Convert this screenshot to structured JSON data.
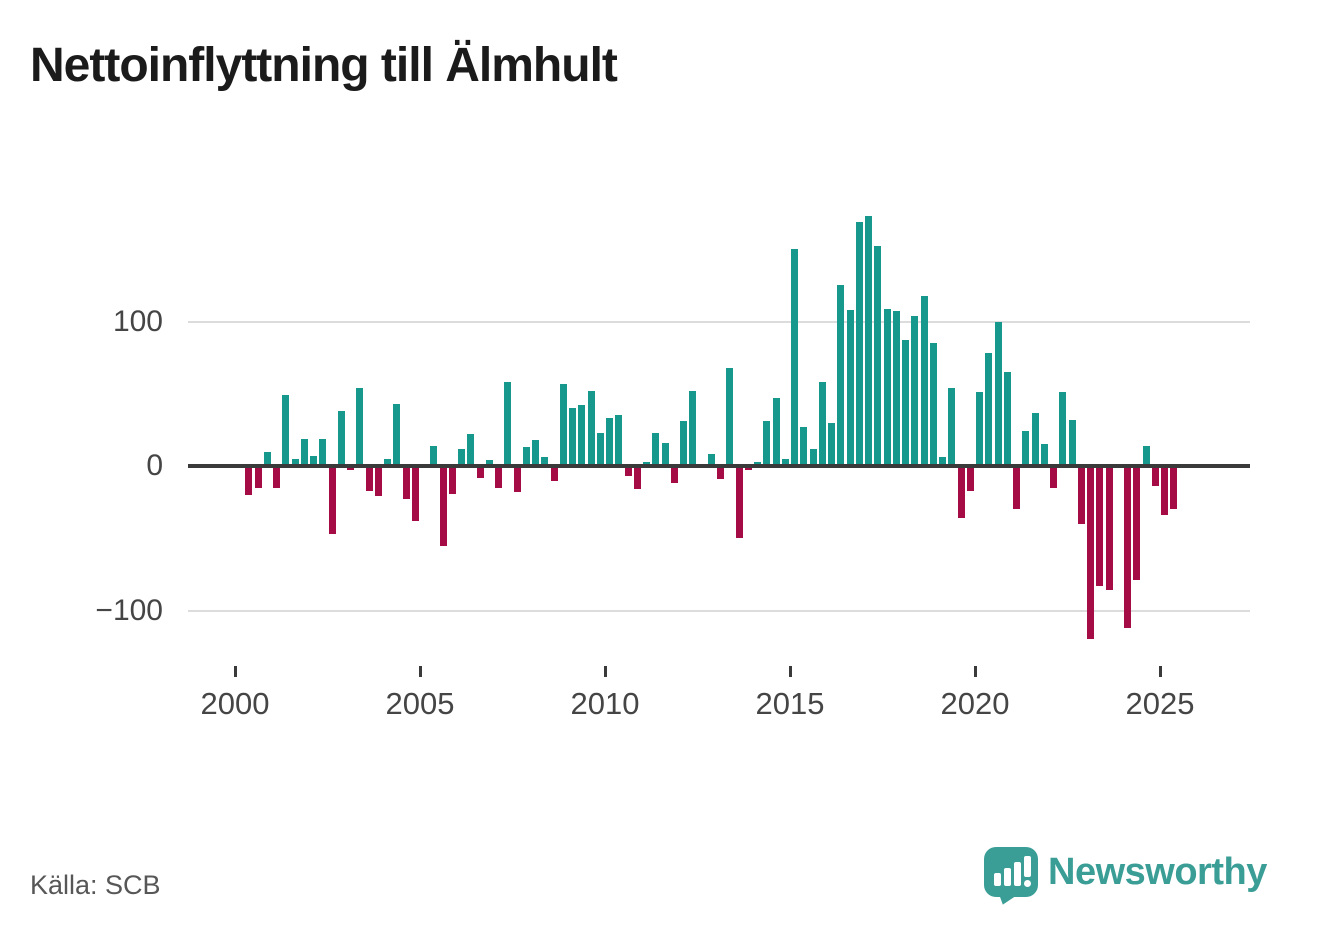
{
  "title": "Nettoinflyttning till Älmhult",
  "source": "Källa: SCB",
  "logo": {
    "text": "Newsworthy"
  },
  "colors": {
    "positive": "#16998c",
    "negative": "#a50c45",
    "logo_teal": "#3a9e96",
    "axis": "#3a3a3a",
    "grid": "#dcdcdc"
  },
  "chart_data": {
    "type": "bar",
    "title": "Nettoinflyttning till Älmhult",
    "period": "quarterly",
    "start_year": 2000,
    "start_quarter": "Q1",
    "end_quarter": "2025-Q2",
    "x_ticks": [
      {
        "label": "2000",
        "year": 2000
      },
      {
        "label": "2005",
        "year": 2005
      },
      {
        "label": "2010",
        "year": 2010
      },
      {
        "label": "2015",
        "year": 2015
      },
      {
        "label": "2020",
        "year": 2020
      },
      {
        "label": "2025",
        "year": 2025
      }
    ],
    "y_ticks": [
      {
        "label": "100",
        "value": 100
      },
      {
        "label": "0",
        "value": 0
      },
      {
        "label": "−100",
        "value": -100
      }
    ],
    "ylim": [
      -130,
      185
    ],
    "grid": "horizontal",
    "legend": "none",
    "values": [
      0,
      -20,
      -15,
      10,
      -15,
      49,
      5,
      19,
      7,
      19,
      -47,
      38,
      -3,
      54,
      -17,
      -21,
      5,
      43,
      -23,
      -38,
      0,
      14,
      -55,
      -19,
      12,
      22,
      -8,
      4,
      -15,
      58,
      -18,
      13,
      18,
      6,
      -10,
      57,
      40,
      42,
      52,
      23,
      33,
      35,
      -7,
      -16,
      3,
      23,
      16,
      -12,
      31,
      52,
      0,
      8,
      -9,
      68,
      -50,
      -3,
      3,
      31,
      47,
      5,
      150,
      27,
      12,
      58,
      30,
      125,
      108,
      169,
      173,
      152,
      109,
      107,
      87,
      104,
      118,
      85,
      6,
      54,
      -36,
      -17,
      51,
      78,
      100,
      65,
      -30,
      24,
      37,
      15,
      -15,
      51,
      32,
      -40,
      -120,
      -83,
      -86,
      0,
      -112,
      -79,
      14,
      -14,
      -34,
      -30
    ]
  }
}
